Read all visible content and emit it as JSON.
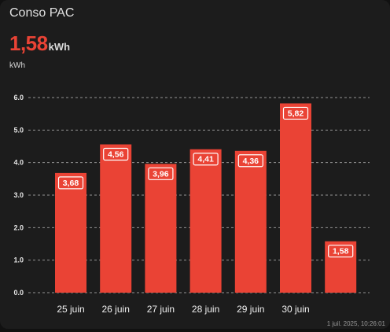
{
  "card": {
    "title": "Conso PAC",
    "current_value": "1,58",
    "current_unit": "kWh",
    "updated": "1 juil. 2025, 10:26:01"
  },
  "colors": {
    "accent": "#ea4335",
    "background": "#1c1c1c",
    "text": "#e1e1e1"
  },
  "chart_data": {
    "type": "bar",
    "ylabel": "kWh",
    "ylim": [
      0,
      6
    ],
    "yticks": [
      0,
      1,
      2,
      3,
      4,
      5,
      6
    ],
    "ytick_labels": [
      "0.0",
      "1.0",
      "2.0",
      "3.0",
      "4.0",
      "5.0",
      "6.0"
    ],
    "grid": true,
    "categories": [
      "25 juin",
      "26 juin",
      "27 juin",
      "28 juin",
      "29 juin",
      "30 juin",
      ""
    ],
    "values": [
      3.68,
      4.56,
      3.96,
      4.41,
      4.36,
      5.82,
      1.58
    ],
    "value_labels": [
      "3,68",
      "4,56",
      "3,96",
      "4,41",
      "4,36",
      "5,82",
      "1,58"
    ],
    "color": "#ea4335"
  }
}
